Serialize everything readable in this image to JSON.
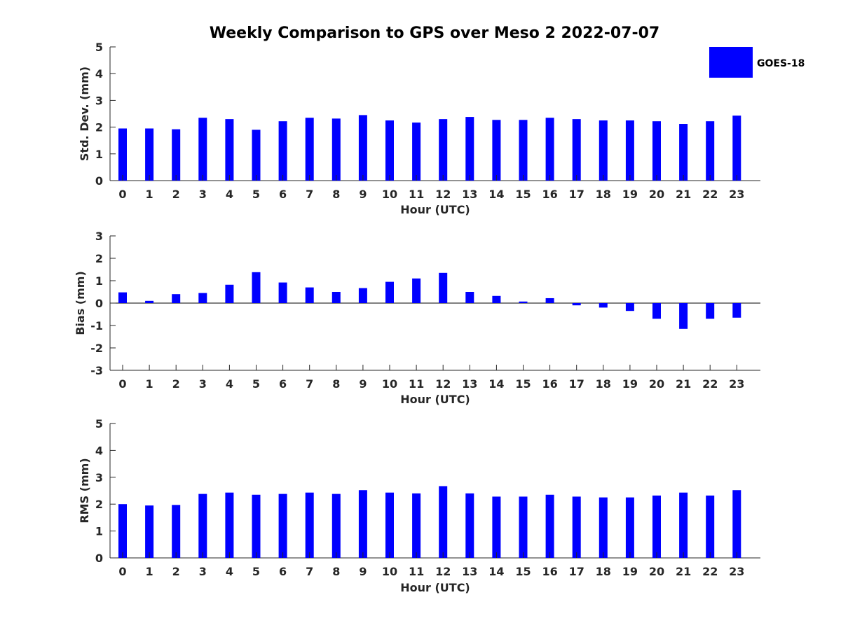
{
  "chart_data": {
    "type": "bar",
    "title": "Weekly Comparison to GPS over Meso 2 2022-07-07",
    "legend": {
      "label": "GOES-18",
      "color": "#0000ff",
      "placement": "top-right"
    },
    "categories": [
      "0",
      "1",
      "2",
      "3",
      "4",
      "5",
      "6",
      "7",
      "8",
      "9",
      "10",
      "11",
      "12",
      "13",
      "14",
      "15",
      "16",
      "17",
      "18",
      "19",
      "20",
      "21",
      "22",
      "23"
    ],
    "panels": [
      {
        "ylabel": "Std. Dev. (mm)",
        "xlabel": "Hour (UTC)",
        "ylim": [
          0,
          5
        ],
        "yticks": [
          "0",
          "1",
          "2",
          "3",
          "4",
          "5"
        ],
        "values": [
          1.95,
          1.95,
          1.92,
          2.35,
          2.3,
          1.9,
          2.22,
          2.35,
          2.32,
          2.45,
          2.25,
          2.17,
          2.3,
          2.38,
          2.27,
          2.27,
          2.35,
          2.3,
          2.25,
          2.25,
          2.22,
          2.12,
          2.22,
          2.43
        ]
      },
      {
        "ylabel": "Bias (mm)",
        "xlabel": "Hour (UTC)",
        "ylim": [
          -3,
          3
        ],
        "yticks": [
          "-3",
          "-2",
          "-1",
          "0",
          "1",
          "2",
          "3"
        ],
        "values": [
          0.48,
          0.1,
          0.4,
          0.45,
          0.82,
          1.38,
          0.92,
          0.7,
          0.5,
          0.67,
          0.95,
          1.1,
          1.35,
          0.5,
          0.32,
          0.07,
          0.22,
          -0.1,
          -0.2,
          -0.35,
          -0.7,
          -1.15,
          -0.7,
          -0.65
        ]
      },
      {
        "ylabel": "RMS (mm)",
        "xlabel": "Hour (UTC)",
        "ylim": [
          0,
          5
        ],
        "yticks": [
          "0",
          "1",
          "2",
          "3",
          "4",
          "5"
        ],
        "values": [
          2.0,
          1.95,
          1.97,
          2.38,
          2.43,
          2.35,
          2.38,
          2.43,
          2.38,
          2.52,
          2.43,
          2.4,
          2.67,
          2.4,
          2.28,
          2.28,
          2.35,
          2.28,
          2.25,
          2.25,
          2.32,
          2.43,
          2.32,
          2.52
        ]
      }
    ]
  }
}
